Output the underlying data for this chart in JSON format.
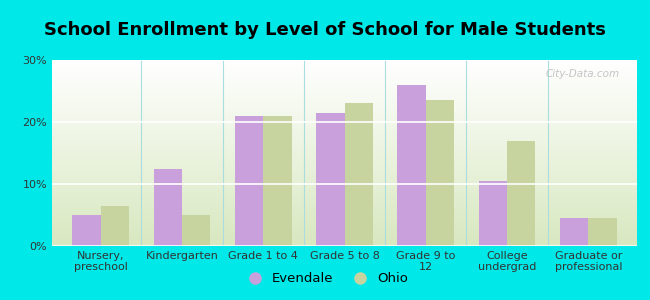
{
  "title": "School Enrollment by Level of School for Male Students",
  "categories": [
    "Nursery,\npreschool",
    "Kindergarten",
    "Grade 1 to 4",
    "Grade 5 to 8",
    "Grade 9 to\n12",
    "College\nundergrad",
    "Graduate or\nprofessional"
  ],
  "evendale": [
    5.0,
    12.5,
    21.0,
    21.5,
    26.0,
    10.5,
    4.5
  ],
  "ohio": [
    6.5,
    5.0,
    21.0,
    23.0,
    23.5,
    17.0,
    4.5
  ],
  "evendale_color": "#c9a0dc",
  "ohio_color": "#c8d4a0",
  "background_color": "#00e8e8",
  "ylim": [
    0,
    30
  ],
  "yticks": [
    0,
    10,
    20,
    30
  ],
  "ytick_labels": [
    "0%",
    "10%",
    "20%",
    "30%"
  ],
  "bar_width": 0.35,
  "legend_labels": [
    "Evendale",
    "Ohio"
  ],
  "title_fontsize": 13,
  "tick_fontsize": 8,
  "legend_fontsize": 9.5,
  "watermark": "City-Data.com"
}
